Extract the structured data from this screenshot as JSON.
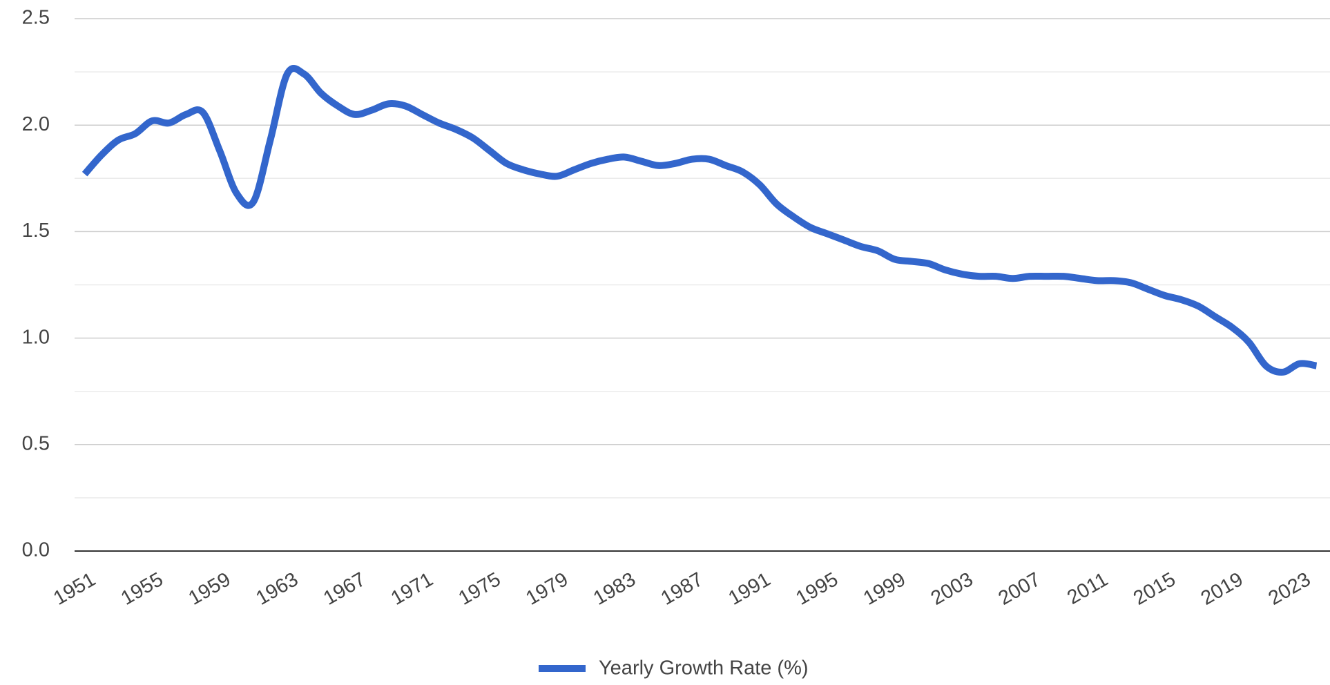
{
  "chart_data": {
    "type": "line",
    "x": [
      1951,
      1952,
      1953,
      1954,
      1955,
      1956,
      1957,
      1958,
      1959,
      1960,
      1961,
      1962,
      1963,
      1964,
      1965,
      1966,
      1967,
      1968,
      1969,
      1970,
      1971,
      1972,
      1973,
      1974,
      1975,
      1976,
      1977,
      1978,
      1979,
      1980,
      1981,
      1982,
      1983,
      1984,
      1985,
      1986,
      1987,
      1988,
      1989,
      1990,
      1991,
      1992,
      1993,
      1994,
      1995,
      1996,
      1997,
      1998,
      1999,
      2000,
      2001,
      2002,
      2003,
      2004,
      2005,
      2006,
      2007,
      2008,
      2009,
      2010,
      2011,
      2012,
      2013,
      2014,
      2015,
      2016,
      2017,
      2018,
      2019,
      2020,
      2021,
      2022,
      2023,
      2024
    ],
    "series": [
      {
        "name": "Yearly Growth Rate (%)",
        "color": "#3366cc",
        "values": [
          1.77,
          1.86,
          1.93,
          1.96,
          2.02,
          2.01,
          2.05,
          2.06,
          1.88,
          1.68,
          1.64,
          1.93,
          2.24,
          2.24,
          2.15,
          2.09,
          2.05,
          2.07,
          2.1,
          2.09,
          2.05,
          2.01,
          1.98,
          1.94,
          1.88,
          1.82,
          1.79,
          1.77,
          1.76,
          1.79,
          1.82,
          1.84,
          1.85,
          1.83,
          1.81,
          1.82,
          1.84,
          1.84,
          1.81,
          1.78,
          1.72,
          1.63,
          1.57,
          1.52,
          1.49,
          1.46,
          1.43,
          1.41,
          1.37,
          1.36,
          1.35,
          1.32,
          1.3,
          1.29,
          1.29,
          1.28,
          1.29,
          1.29,
          1.29,
          1.28,
          1.27,
          1.27,
          1.26,
          1.23,
          1.2,
          1.18,
          1.15,
          1.1,
          1.05,
          0.98,
          0.87,
          0.84,
          0.88,
          0.87
        ]
      }
    ],
    "xlim": [
      1950.4,
      2024.8
    ],
    "xticks": [
      1951,
      1955,
      1959,
      1963,
      1967,
      1971,
      1975,
      1979,
      1983,
      1987,
      1991,
      1995,
      1999,
      2003,
      2007,
      2011,
      2015,
      2019,
      2023
    ],
    "ylim": [
      0,
      2.5
    ],
    "yticks": [
      {
        "value": 0,
        "label": "0.0"
      },
      0.5,
      {
        "value": 1,
        "label": "1.0"
      },
      1.5,
      {
        "value": 2,
        "label": "2.0"
      },
      2.5
    ],
    "minor_yticks": [
      0.25,
      0.75,
      1.25,
      1.75,
      2.25
    ],
    "grid": true,
    "legend": "bottom"
  }
}
